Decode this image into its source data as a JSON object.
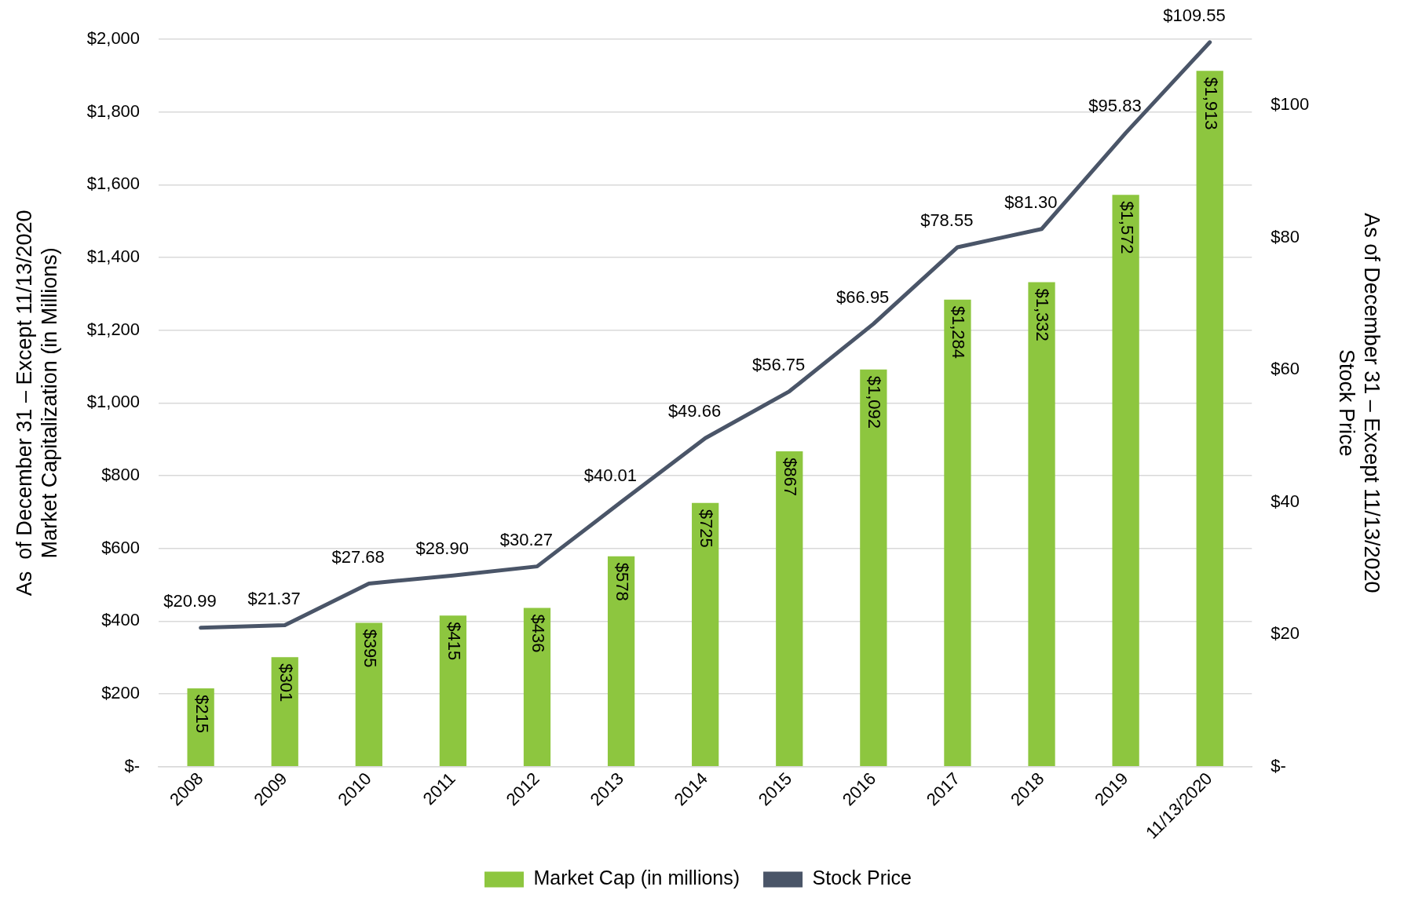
{
  "chart_data": {
    "type": "bar",
    "categories": [
      "2008",
      "2009",
      "2010",
      "2011",
      "2012",
      "2013",
      "2014",
      "2015",
      "2016",
      "2017",
      "2018",
      "2019",
      "11/13/2020"
    ],
    "series": [
      {
        "name": "Market Cap (in millions)",
        "color": "#8dc63f",
        "values": [
          215,
          301,
          395,
          415,
          436,
          578,
          725,
          867,
          1092,
          1284,
          1332,
          1572,
          1913
        ],
        "value_labels": [
          "$215",
          "$301",
          "$395",
          "$415",
          "$436",
          "$578",
          "$725",
          "$867",
          "$1,092",
          "$1,284",
          "$1,332",
          "$1,572",
          "$1,913"
        ]
      },
      {
        "name": "Stock Price",
        "type": "line",
        "axis": "y2",
        "color": "#4a5568",
        "values": [
          20.99,
          21.37,
          27.68,
          28.9,
          30.27,
          40.01,
          49.66,
          56.75,
          66.95,
          78.55,
          81.3,
          95.83,
          109.55
        ],
        "value_labels": [
          "$20.99",
          "$21.37",
          "$27.68",
          "$28.90",
          "$30.27",
          "$40.01",
          "$49.66",
          "$56.75",
          "$66.95",
          "$78.55",
          "$81.30",
          "$95.83",
          "$109.55"
        ]
      }
    ],
    "ylabel": "As  of December 31 – Except 11/13/2020\nMarket Capitalization (in Millions)",
    "y2label": "As of December 31 – Except 11/13/2020\nStock Price",
    "ylim": [
      0,
      2000
    ],
    "yticks": [
      {
        "value": 0,
        "label": "$-"
      },
      {
        "value": 200,
        "label": "$200"
      },
      {
        "value": 400,
        "label": "$400"
      },
      {
        "value": 600,
        "label": "$600"
      },
      {
        "value": 800,
        "label": "$800"
      },
      {
        "value": 1000,
        "label": "$1,000"
      },
      {
        "value": 1200,
        "label": "$1,200"
      },
      {
        "value": 1400,
        "label": "$1,400"
      },
      {
        "value": 1600,
        "label": "$1,600"
      },
      {
        "value": 1800,
        "label": "$1,800"
      },
      {
        "value": 2000,
        "label": "$2,000"
      }
    ],
    "y2lim": [
      0,
      110
    ],
    "y2ticks": [
      {
        "value": 0,
        "label": "$-"
      },
      {
        "value": 20,
        "label": "$20"
      },
      {
        "value": 40,
        "label": "$40"
      },
      {
        "value": 60,
        "label": "$60"
      },
      {
        "value": 80,
        "label": "$80"
      },
      {
        "value": 100,
        "label": "$100"
      }
    ],
    "grid": "y",
    "legend": "bottom",
    "marker": "none",
    "line_style": "solid"
  }
}
